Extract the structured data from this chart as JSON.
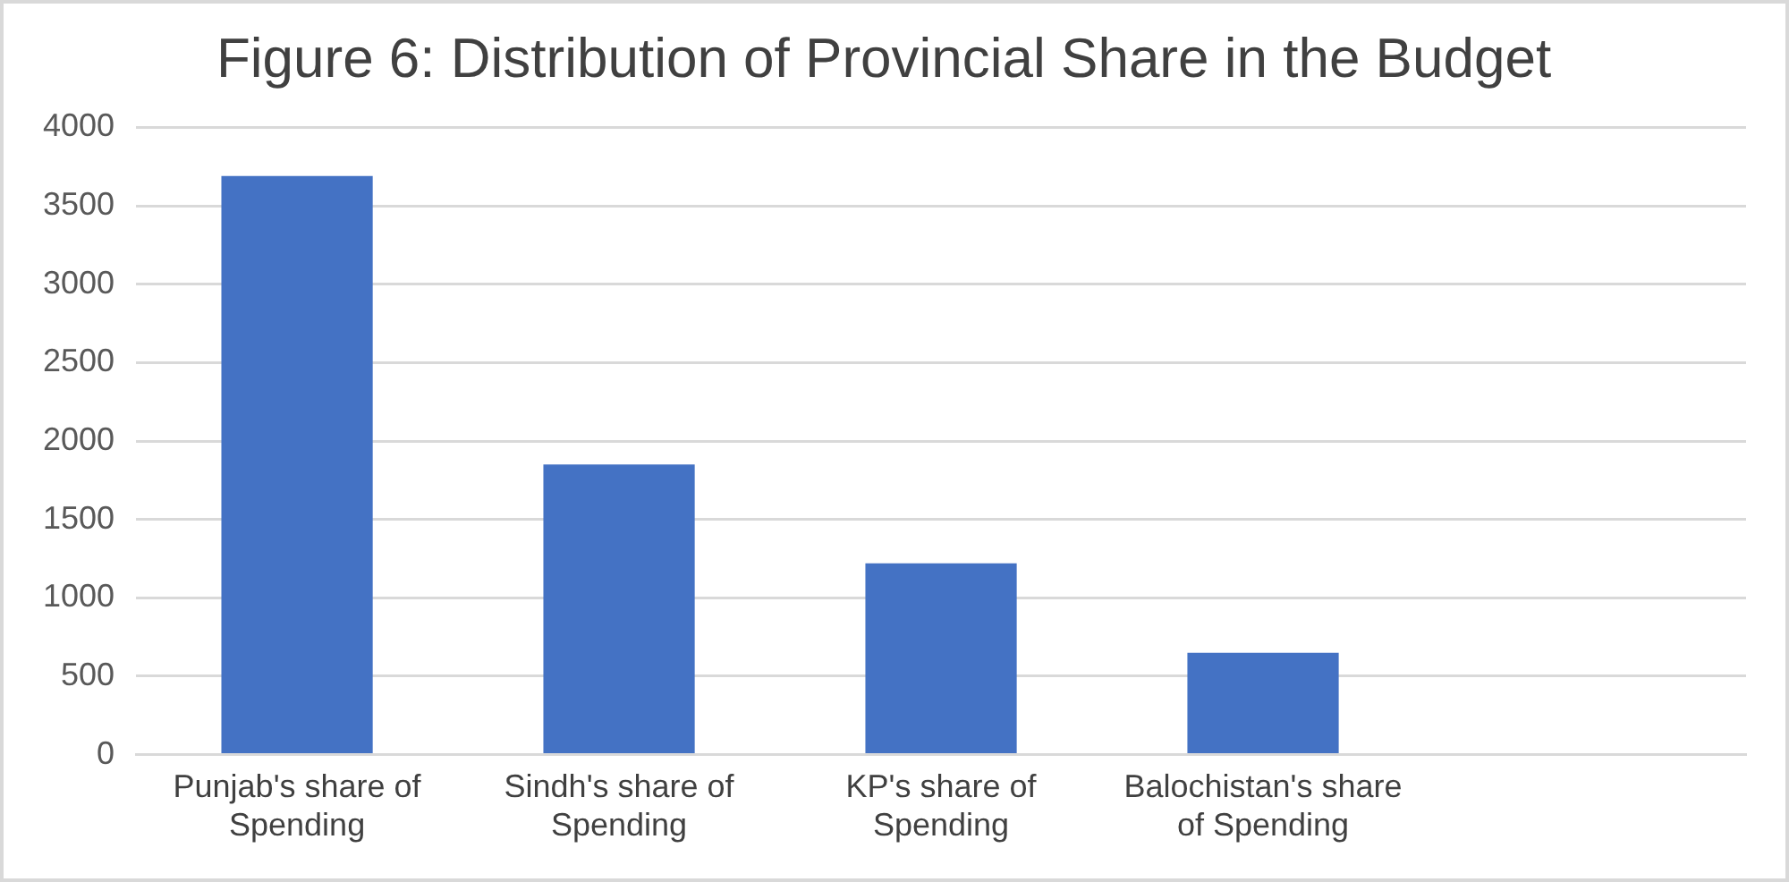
{
  "chart_data": {
    "type": "bar",
    "title": "Figure 6: Distribution of Provincial Share in the Budget",
    "categories": [
      "Punjab's share of Spending",
      "Sindh's share of Spending",
      "KP's share of Spending",
      "Balochistan's share of Spending",
      null
    ],
    "values": [
      3690,
      1850,
      1220,
      650,
      null
    ],
    "color": "#4472c4",
    "ylim": [
      0,
      4000
    ],
    "yticks": [
      0,
      500,
      1000,
      1500,
      2000,
      2500,
      3000,
      3500,
      4000
    ],
    "grid": "y",
    "legend": false
  }
}
